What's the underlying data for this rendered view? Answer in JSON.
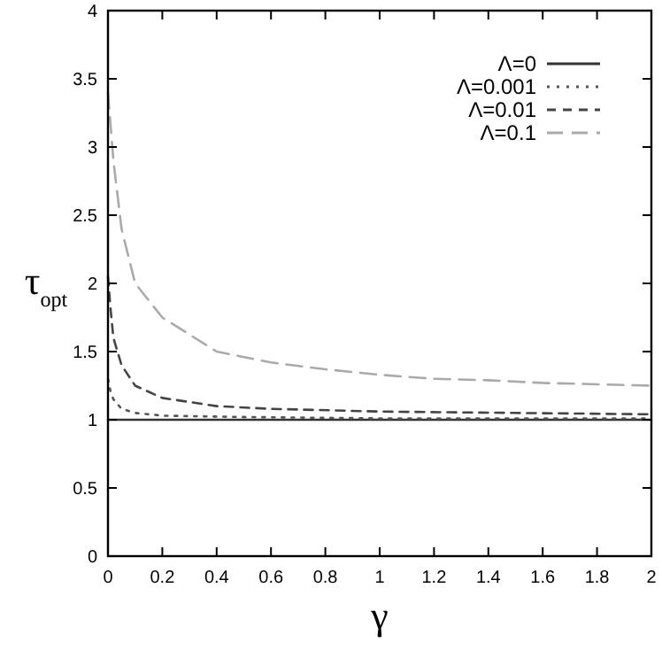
{
  "chart_data": {
    "type": "line",
    "xlabel": "γ",
    "ylabel": "τ$_{opt}$",
    "xlim": [
      0,
      2
    ],
    "ylim": [
      0,
      4
    ],
    "xticks": [
      0,
      0.2,
      0.4,
      0.6,
      0.8,
      1,
      1.2,
      1.4,
      1.6,
      1.8,
      2
    ],
    "yticks": [
      0,
      0.5,
      1,
      1.5,
      2,
      2.5,
      3,
      3.5,
      4
    ],
    "legend": "top right",
    "grid": false,
    "marker": "none",
    "series": [
      {
        "name": "Λ=0",
        "color": "#333333",
        "line_style": "solid",
        "x": [
          0,
          2
        ],
        "values": [
          1,
          1
        ]
      },
      {
        "name": "Λ=0.001",
        "color": "#555555",
        "line_style": "dotted",
        "x": [
          0,
          0.01,
          0.02,
          0.05,
          0.1,
          0.2,
          0.5,
          1,
          2
        ],
        "values": [
          1.3,
          1.2,
          1.15,
          1.08,
          1.05,
          1.03,
          1.02,
          1.01,
          1.01
        ]
      },
      {
        "name": "Λ=0.01",
        "color": "#444444",
        "line_style": "dashed",
        "x": [
          0,
          0.01,
          0.02,
          0.05,
          0.1,
          0.2,
          0.4,
          0.6,
          1,
          1.5,
          2
        ],
        "values": [
          2.05,
          1.8,
          1.6,
          1.4,
          1.25,
          1.16,
          1.1,
          1.08,
          1.06,
          1.05,
          1.04
        ]
      },
      {
        "name": "Λ=0.1",
        "color": "#aaaaaa",
        "line_style": "longdash",
        "x": [
          0,
          0.02,
          0.05,
          0.1,
          0.2,
          0.4,
          0.6,
          0.8,
          1,
          1.2,
          1.4,
          1.6,
          1.8,
          2
        ],
        "values": [
          3.4,
          2.9,
          2.4,
          2.0,
          1.75,
          1.5,
          1.42,
          1.37,
          1.33,
          1.3,
          1.29,
          1.27,
          1.26,
          1.25
        ]
      }
    ]
  }
}
